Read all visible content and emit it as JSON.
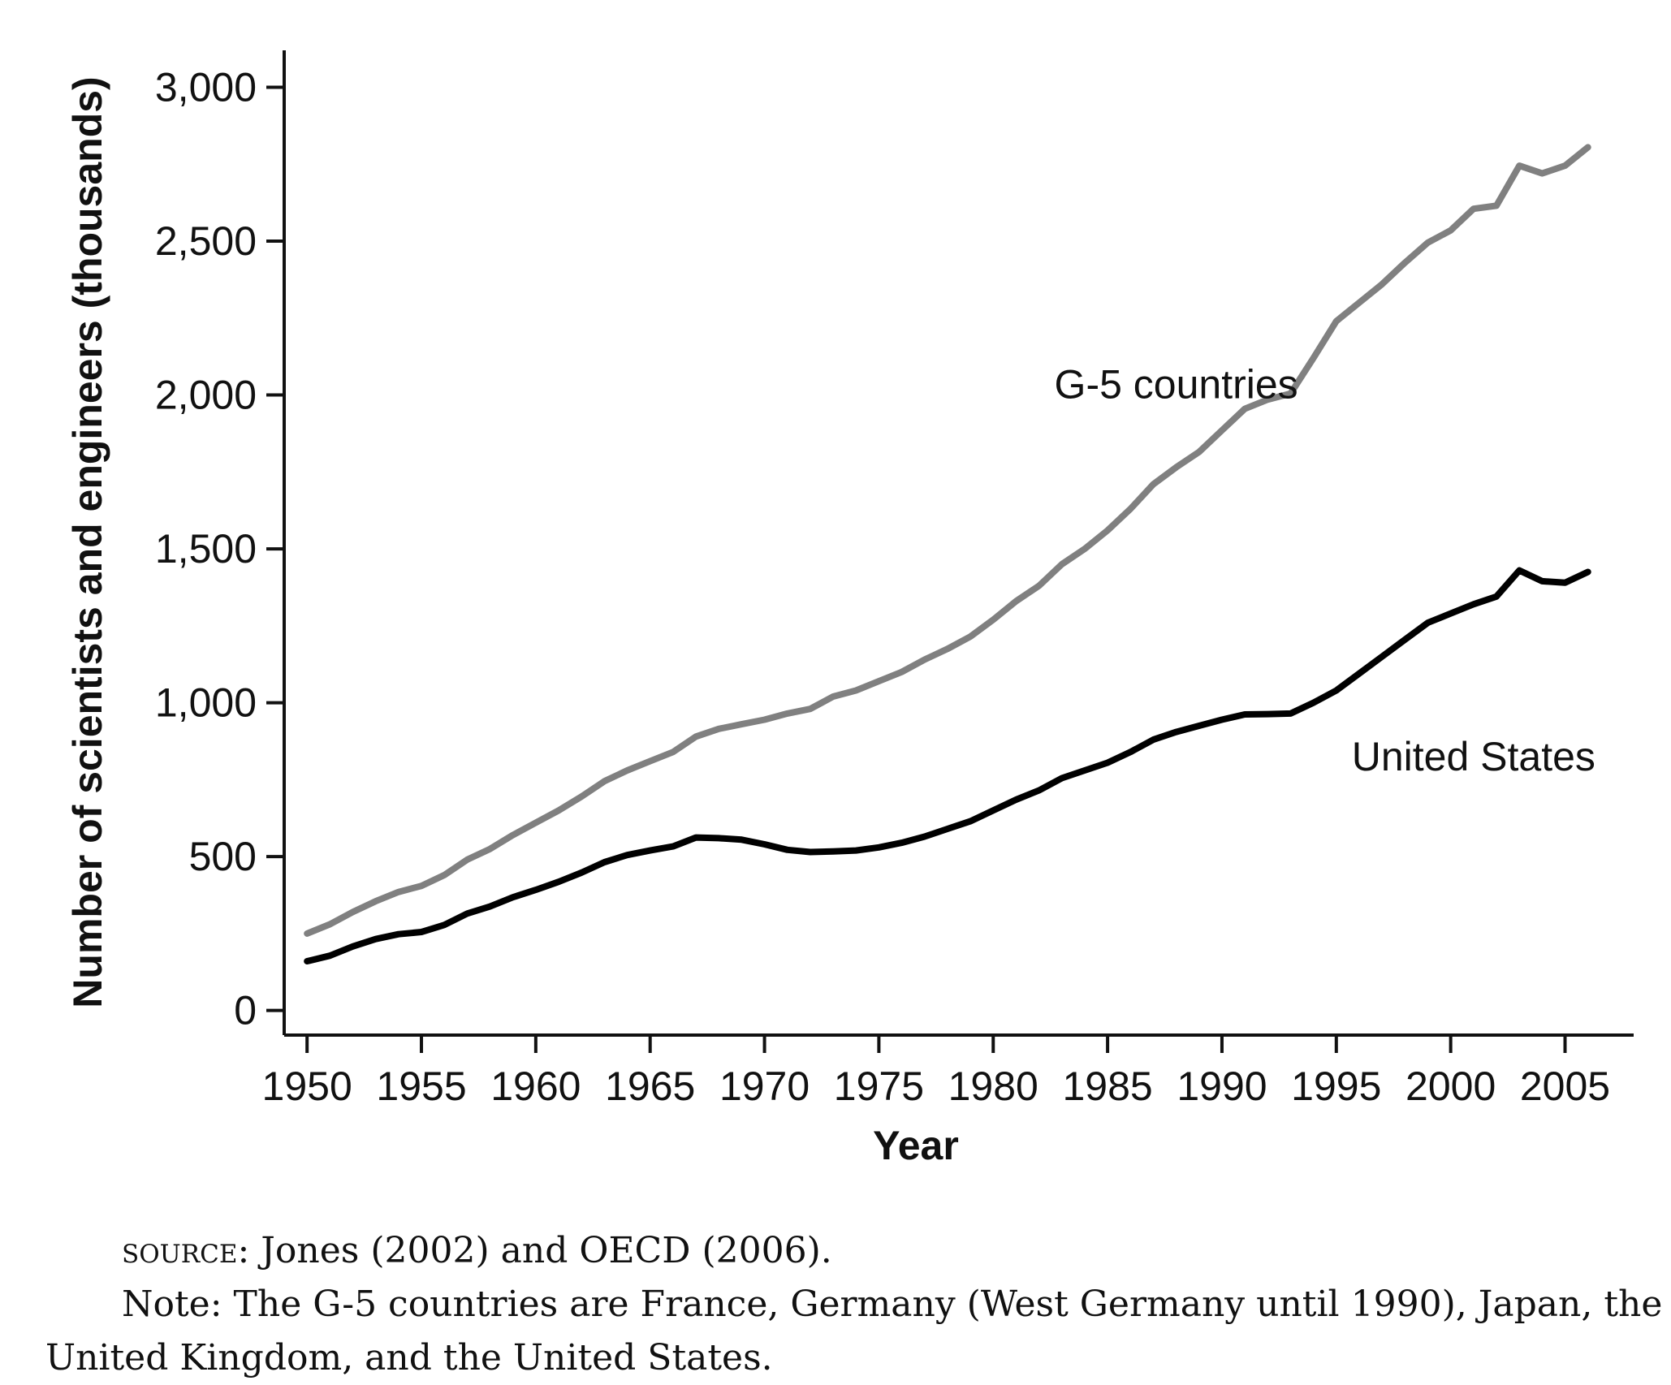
{
  "chart_data": {
    "type": "line",
    "title": "",
    "xlabel": "Year",
    "ylabel": "Number of scientists and engineers (thousands)",
    "xlim": [
      1949,
      2008
    ],
    "ylim": [
      -80,
      3120
    ],
    "xticks": [
      1950,
      1955,
      1960,
      1965,
      1970,
      1975,
      1980,
      1985,
      1990,
      1995,
      2000,
      2005
    ],
    "yticks": [
      0,
      500,
      1000,
      1500,
      2000,
      2500,
      3000
    ],
    "ytick_labels": [
      "0",
      "500",
      "1,000",
      "1,500",
      "2,000",
      "2,500",
      "3,000"
    ],
    "grid": false,
    "legend": "none",
    "series": [
      {
        "name": "G-5 countries",
        "color": "#808080",
        "label_anchor": [
          1988,
          1990
        ],
        "points": [
          [
            1950,
            250
          ],
          [
            1951,
            280
          ],
          [
            1952,
            320
          ],
          [
            1953,
            355
          ],
          [
            1954,
            385
          ],
          [
            1955,
            405
          ],
          [
            1956,
            440
          ],
          [
            1957,
            490
          ],
          [
            1958,
            525
          ],
          [
            1959,
            570
          ],
          [
            1960,
            610
          ],
          [
            1961,
            650
          ],
          [
            1962,
            695
          ],
          [
            1963,
            745
          ],
          [
            1964,
            780
          ],
          [
            1965,
            810
          ],
          [
            1966,
            840
          ],
          [
            1967,
            890
          ],
          [
            1968,
            915
          ],
          [
            1969,
            930
          ],
          [
            1970,
            945
          ],
          [
            1971,
            965
          ],
          [
            1972,
            980
          ],
          [
            1973,
            1020
          ],
          [
            1974,
            1040
          ],
          [
            1975,
            1070
          ],
          [
            1976,
            1100
          ],
          [
            1977,
            1140
          ],
          [
            1978,
            1175
          ],
          [
            1979,
            1215
          ],
          [
            1980,
            1270
          ],
          [
            1981,
            1330
          ],
          [
            1982,
            1380
          ],
          [
            1983,
            1450
          ],
          [
            1984,
            1500
          ],
          [
            1985,
            1560
          ],
          [
            1986,
            1630
          ],
          [
            1987,
            1710
          ],
          [
            1988,
            1765
          ],
          [
            1989,
            1815
          ],
          [
            1990,
            1885
          ],
          [
            1991,
            1955
          ],
          [
            1992,
            1985
          ],
          [
            1993,
            2005
          ],
          [
            1994,
            2120
          ],
          [
            1995,
            2240
          ],
          [
            1996,
            2300
          ],
          [
            1997,
            2360
          ],
          [
            1998,
            2430
          ],
          [
            1999,
            2495
          ],
          [
            2000,
            2535
          ],
          [
            2001,
            2605
          ],
          [
            2002,
            2615
          ],
          [
            2003,
            2745
          ],
          [
            2004,
            2720
          ],
          [
            2005,
            2745
          ],
          [
            2006,
            2805
          ]
        ]
      },
      {
        "name": "United States",
        "color": "#000000",
        "label_anchor": [
          2001,
          780
        ],
        "points": [
          [
            1950,
            160
          ],
          [
            1951,
            178
          ],
          [
            1952,
            208
          ],
          [
            1953,
            232
          ],
          [
            1954,
            248
          ],
          [
            1955,
            255
          ],
          [
            1956,
            278
          ],
          [
            1957,
            315
          ],
          [
            1958,
            338
          ],
          [
            1959,
            368
          ],
          [
            1960,
            392
          ],
          [
            1961,
            418
          ],
          [
            1962,
            448
          ],
          [
            1963,
            482
          ],
          [
            1964,
            505
          ],
          [
            1965,
            520
          ],
          [
            1966,
            533
          ],
          [
            1967,
            562
          ],
          [
            1968,
            560
          ],
          [
            1969,
            555
          ],
          [
            1970,
            540
          ],
          [
            1971,
            522
          ],
          [
            1972,
            515
          ],
          [
            1973,
            517
          ],
          [
            1974,
            520
          ],
          [
            1975,
            530
          ],
          [
            1976,
            545
          ],
          [
            1977,
            565
          ],
          [
            1978,
            590
          ],
          [
            1979,
            615
          ],
          [
            1980,
            650
          ],
          [
            1981,
            685
          ],
          [
            1982,
            715
          ],
          [
            1983,
            755
          ],
          [
            1984,
            780
          ],
          [
            1985,
            805
          ],
          [
            1986,
            840
          ],
          [
            1987,
            880
          ],
          [
            1988,
            905
          ],
          [
            1989,
            925
          ],
          [
            1990,
            945
          ],
          [
            1991,
            962
          ],
          [
            1992,
            963
          ],
          [
            1993,
            965
          ],
          [
            1994,
            1000
          ],
          [
            1995,
            1040
          ],
          [
            1996,
            1095
          ],
          [
            1997,
            1150
          ],
          [
            1998,
            1205
          ],
          [
            1999,
            1260
          ],
          [
            2000,
            1290
          ],
          [
            2001,
            1320
          ],
          [
            2002,
            1345
          ],
          [
            2003,
            1430
          ],
          [
            2004,
            1395
          ],
          [
            2005,
            1390
          ],
          [
            2006,
            1425
          ]
        ]
      }
    ]
  },
  "caption": {
    "source_prefix": "source",
    "source_text": ": Jones (2002) and OECD (2006).",
    "note_line1": "Note: The G-5 countries are France, Germany (West Germany until 1990), Japan, the",
    "note_line2": "United Kingdom, and the United States."
  }
}
